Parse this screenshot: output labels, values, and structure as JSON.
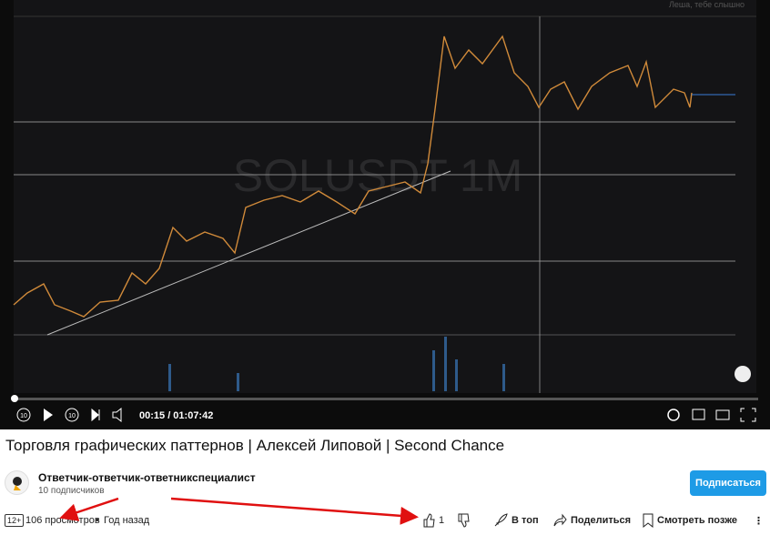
{
  "video": {
    "watermark": "SOLUSDT 1M",
    "overlay_text": "Леша, тебе слышно",
    "skip_back": "10",
    "skip_forward": "10",
    "time": "00:15 / 01:07:42"
  },
  "title": "Торговля графических паттернов | Алексей Липовой | Second Chance",
  "channel": {
    "name": "Ответчик-ответчик-ответникспециалист",
    "subscribers": "10 подписчиков",
    "subscribe_button": "Подписаться"
  },
  "stats": {
    "age_rating": "12+",
    "views": "106 просмотров",
    "date": "Год назад",
    "likes": "1"
  },
  "actions": [
    "В топ",
    "Поделиться",
    "Смотреть позже"
  ]
}
